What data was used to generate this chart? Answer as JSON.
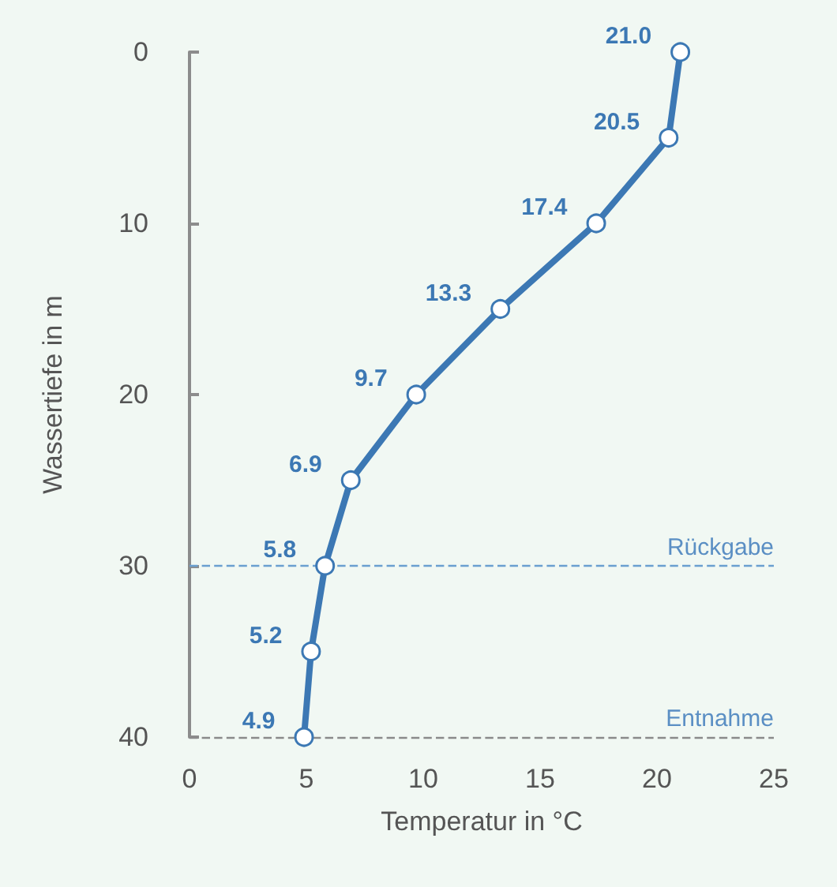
{
  "chart_data": {
    "type": "line",
    "orientation": "horizontal",
    "xlabel": "Temperatur in °C",
    "ylabel": "Wassertiefe in m",
    "x": [
      0,
      5,
      10,
      15,
      20,
      25,
      30,
      35,
      40
    ],
    "series": [
      {
        "color": "#3c78b4",
        "values": [
          21.0,
          20.5,
          17.4,
          13.3,
          9.7,
          6.9,
          5.8,
          5.2,
          4.9
        ],
        "value_labels": [
          "21.0",
          "20.5",
          "17.4",
          "13.3",
          "9.7",
          "6.9",
          "5.8",
          "5.2",
          "4.9"
        ]
      }
    ],
    "xlim": [
      0,
      25
    ],
    "xticks": [
      0,
      5,
      10,
      15,
      20,
      25
    ],
    "ylim": [
      40,
      0
    ],
    "yticks": [
      0,
      10,
      20,
      30,
      40
    ],
    "grid": false,
    "marker": "circle",
    "line_style": "solid",
    "ref_lines": [
      {
        "axis": "y",
        "value": 30,
        "label": "Rückgabe",
        "color": "#6a9fd0",
        "line_style": "dashed"
      },
      {
        "axis": "y",
        "value": 40,
        "label": "Entnahme",
        "color": "#8a8a8a",
        "line_style": "dashed"
      }
    ]
  }
}
